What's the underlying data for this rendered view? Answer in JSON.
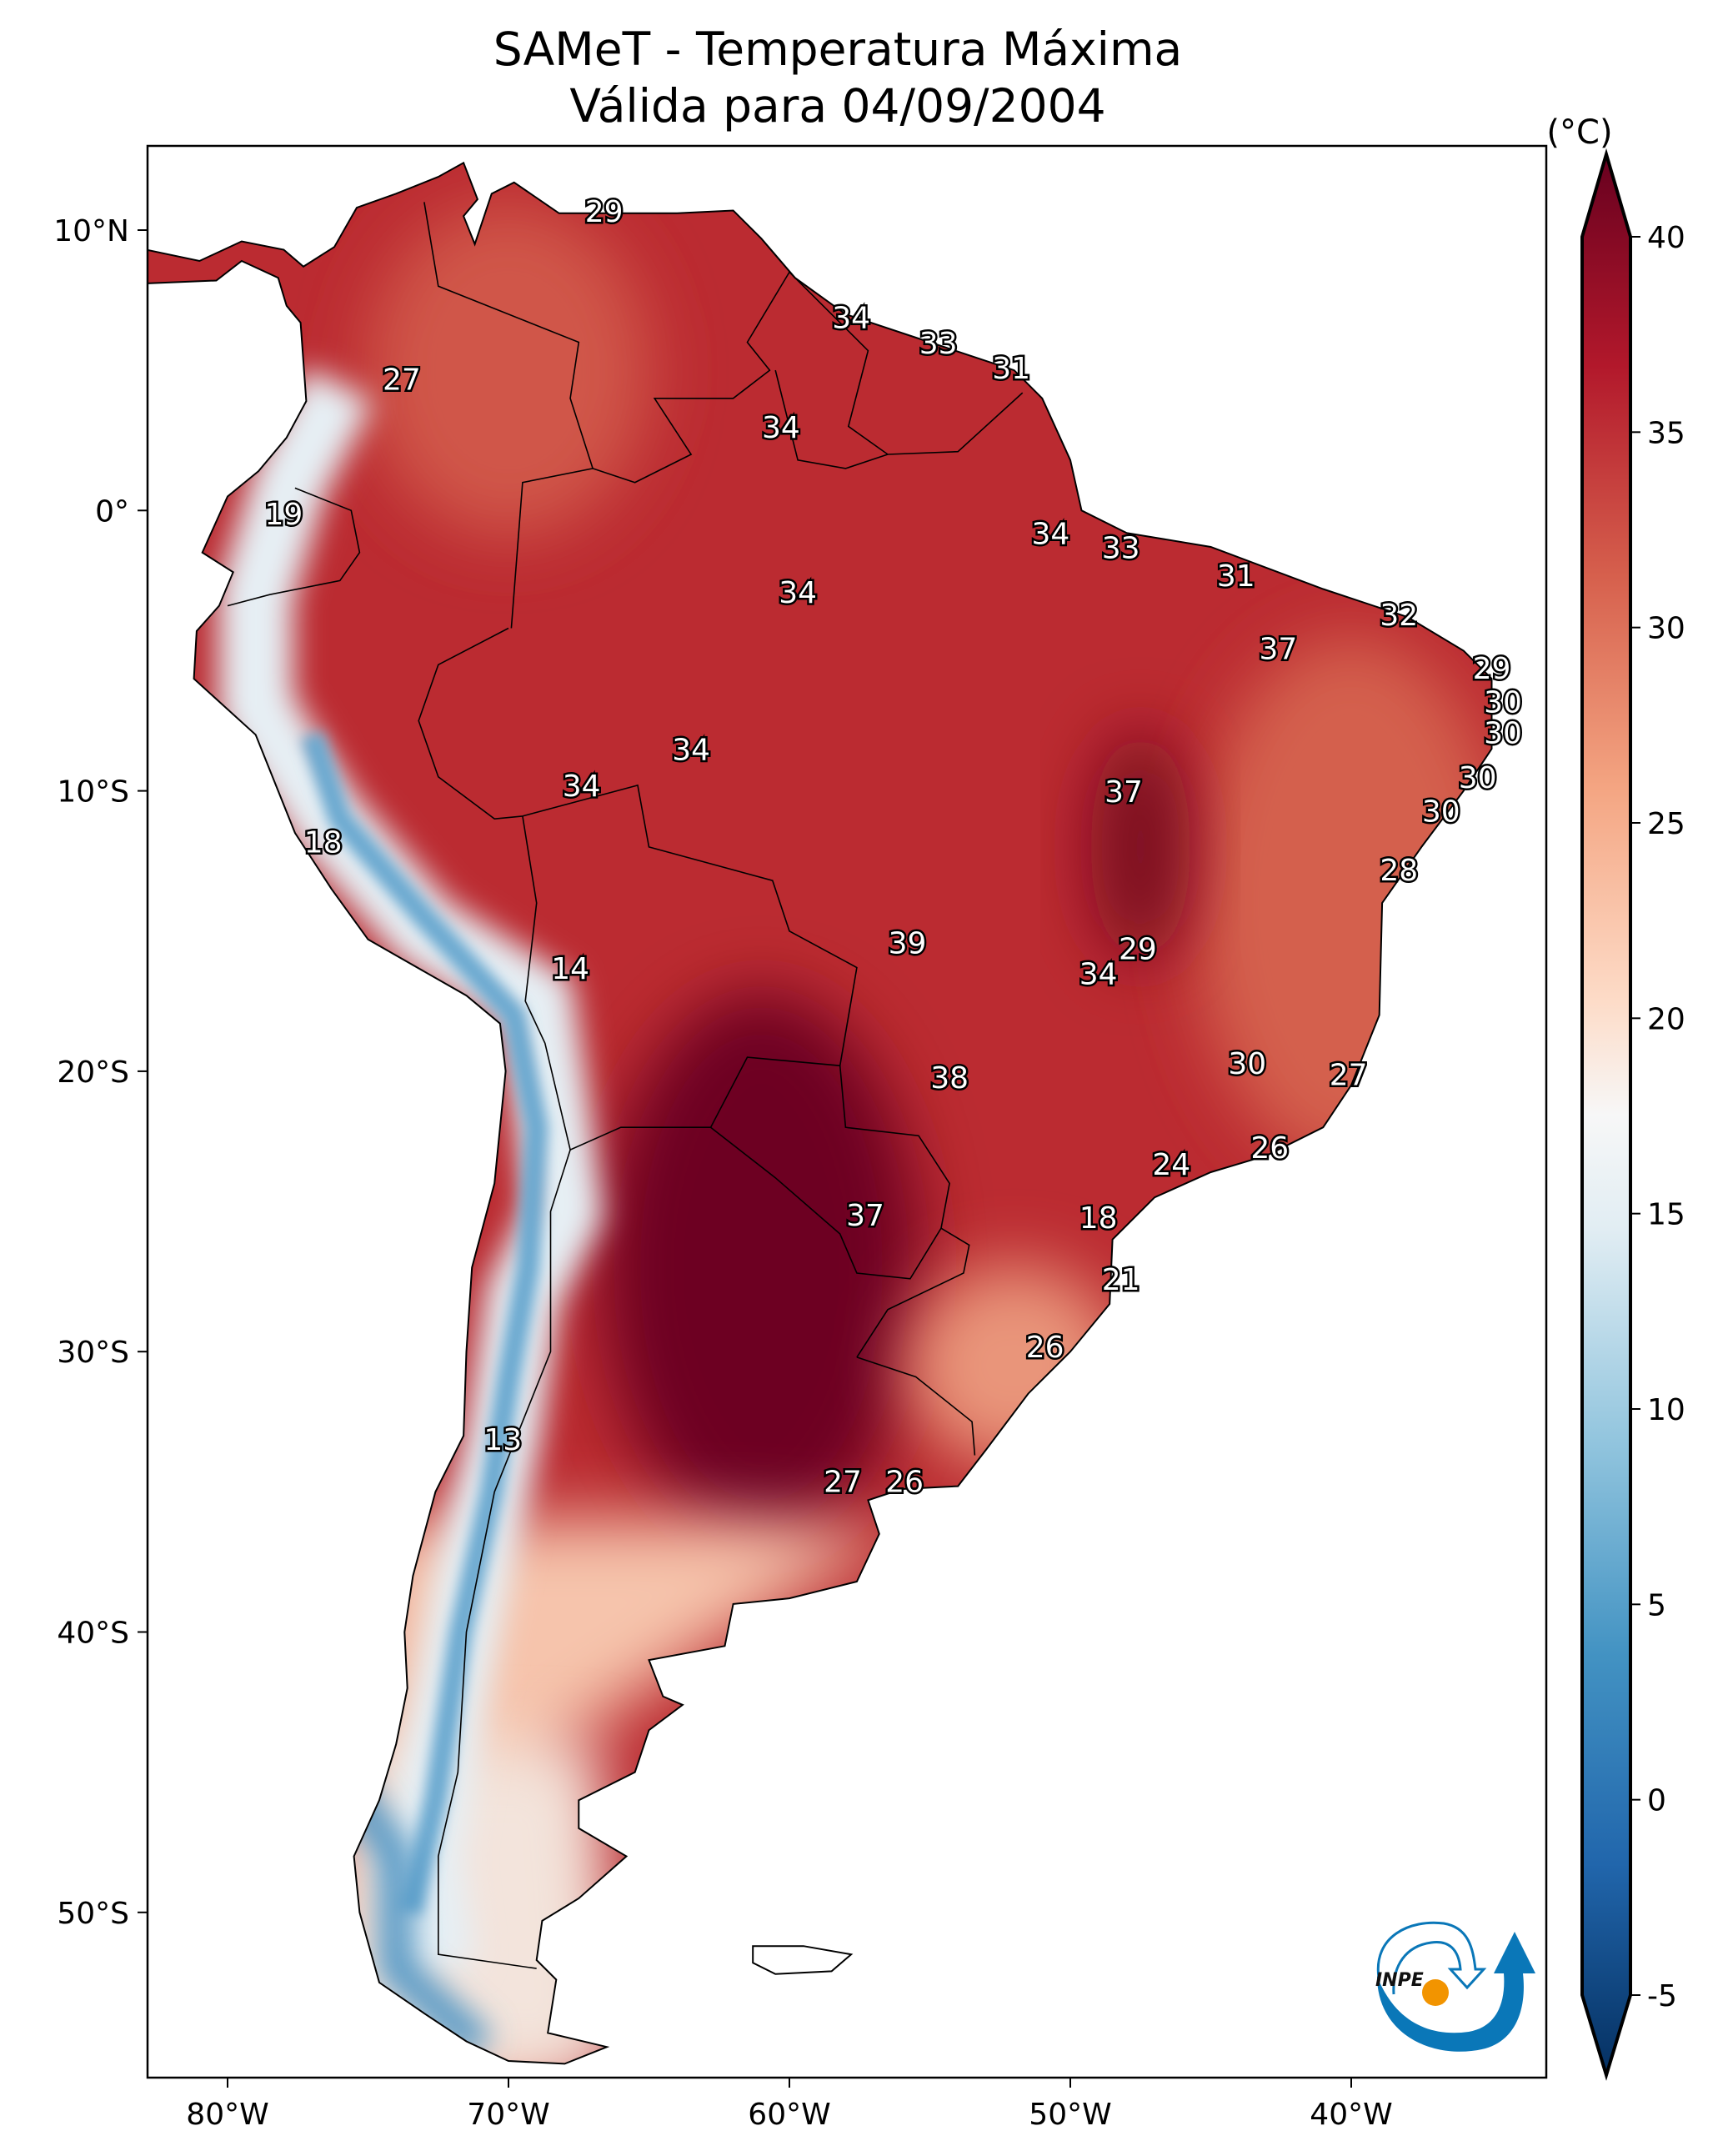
{
  "chart_data": {
    "type": "heatmap",
    "title": "SAMeT - Temperatura Máxima",
    "subtitle": "Válida para 04/09/2004",
    "xlabel": "",
    "ylabel": "",
    "xlim": [
      -82.85,
      -33.06
    ],
    "ylim": [
      -55.9,
      13.0
    ],
    "x_ticks": [
      {
        "value": -80,
        "label": "80°W"
      },
      {
        "value": -70,
        "label": "70°W"
      },
      {
        "value": -60,
        "label": "60°W"
      },
      {
        "value": -50,
        "label": "50°W"
      },
      {
        "value": -40,
        "label": "40°W"
      }
    ],
    "y_ticks": [
      {
        "value": 10,
        "label": "10°N"
      },
      {
        "value": 0,
        "label": "0°"
      },
      {
        "value": -10,
        "label": "10°S"
      },
      {
        "value": -20,
        "label": "20°S"
      },
      {
        "value": -30,
        "label": "30°S"
      },
      {
        "value": -40,
        "label": "40°S"
      },
      {
        "value": -50,
        "label": "50°S"
      }
    ],
    "colorbar": {
      "unit": "(°C)",
      "range": [
        -5,
        40
      ],
      "extend": "both",
      "colormap": "RdBu_r",
      "ticks": [
        {
          "value": 40,
          "label": "40"
        },
        {
          "value": 35,
          "label": "35"
        },
        {
          "value": 30,
          "label": "30"
        },
        {
          "value": 25,
          "label": "25"
        },
        {
          "value": 20,
          "label": "20"
        },
        {
          "value": 15,
          "label": "15"
        },
        {
          "value": 10,
          "label": "10"
        },
        {
          "value": 5,
          "label": "5"
        },
        {
          "value": 0,
          "label": "0"
        },
        {
          "value": -5,
          "label": "-5"
        }
      ]
    },
    "station_labels": [
      {
        "lon": -66.6,
        "lat": 10.6,
        "value": "29"
      },
      {
        "lon": -57.8,
        "lat": 6.8,
        "value": "34"
      },
      {
        "lon": -54.7,
        "lat": 5.9,
        "value": "33"
      },
      {
        "lon": -52.1,
        "lat": 5.0,
        "value": "31"
      },
      {
        "lon": -73.8,
        "lat": 4.6,
        "value": "27"
      },
      {
        "lon": -60.3,
        "lat": 2.9,
        "value": "34"
      },
      {
        "lon": -78.0,
        "lat": -0.2,
        "value": "19"
      },
      {
        "lon": -50.7,
        "lat": -0.9,
        "value": "34"
      },
      {
        "lon": -48.2,
        "lat": -1.4,
        "value": "33"
      },
      {
        "lon": -44.1,
        "lat": -2.4,
        "value": "31"
      },
      {
        "lon": -59.7,
        "lat": -3.0,
        "value": "34"
      },
      {
        "lon": -38.3,
        "lat": -3.8,
        "value": "32"
      },
      {
        "lon": -42.6,
        "lat": -5.0,
        "value": "37"
      },
      {
        "lon": -35.0,
        "lat": -5.7,
        "value": "29"
      },
      {
        "lon": -34.6,
        "lat": -6.9,
        "value": "30"
      },
      {
        "lon": -34.6,
        "lat": -8.0,
        "value": "30"
      },
      {
        "lon": -63.5,
        "lat": -8.6,
        "value": "34"
      },
      {
        "lon": -35.5,
        "lat": -9.6,
        "value": "30"
      },
      {
        "lon": -67.4,
        "lat": -9.9,
        "value": "34"
      },
      {
        "lon": -48.1,
        "lat": -10.1,
        "value": "37"
      },
      {
        "lon": -36.8,
        "lat": -10.8,
        "value": "30"
      },
      {
        "lon": -76.6,
        "lat": -11.9,
        "value": "18"
      },
      {
        "lon": -38.3,
        "lat": -12.9,
        "value": "28"
      },
      {
        "lon": -55.8,
        "lat": -15.5,
        "value": "39"
      },
      {
        "lon": -47.6,
        "lat": -15.7,
        "value": "29"
      },
      {
        "lon": -67.8,
        "lat": -16.4,
        "value": "14"
      },
      {
        "lon": -49.0,
        "lat": -16.6,
        "value": "34"
      },
      {
        "lon": -43.7,
        "lat": -19.8,
        "value": "30"
      },
      {
        "lon": -40.1,
        "lat": -20.2,
        "value": "27"
      },
      {
        "lon": -54.3,
        "lat": -20.3,
        "value": "38"
      },
      {
        "lon": -42.9,
        "lat": -22.8,
        "value": "26"
      },
      {
        "lon": -46.4,
        "lat": -23.4,
        "value": "24"
      },
      {
        "lon": -57.3,
        "lat": -25.2,
        "value": "37"
      },
      {
        "lon": -49.0,
        "lat": -25.3,
        "value": "18"
      },
      {
        "lon": -48.2,
        "lat": -27.5,
        "value": "21"
      },
      {
        "lon": -50.9,
        "lat": -29.9,
        "value": "26"
      },
      {
        "lon": -70.2,
        "lat": -33.2,
        "value": "13"
      },
      {
        "lon": -58.1,
        "lat": -34.7,
        "value": "27"
      },
      {
        "lon": -55.9,
        "lat": -34.7,
        "value": "26"
      }
    ]
  },
  "logo": {
    "text": "INPE",
    "blue": "#0a77b8",
    "orange": "#f29400"
  }
}
